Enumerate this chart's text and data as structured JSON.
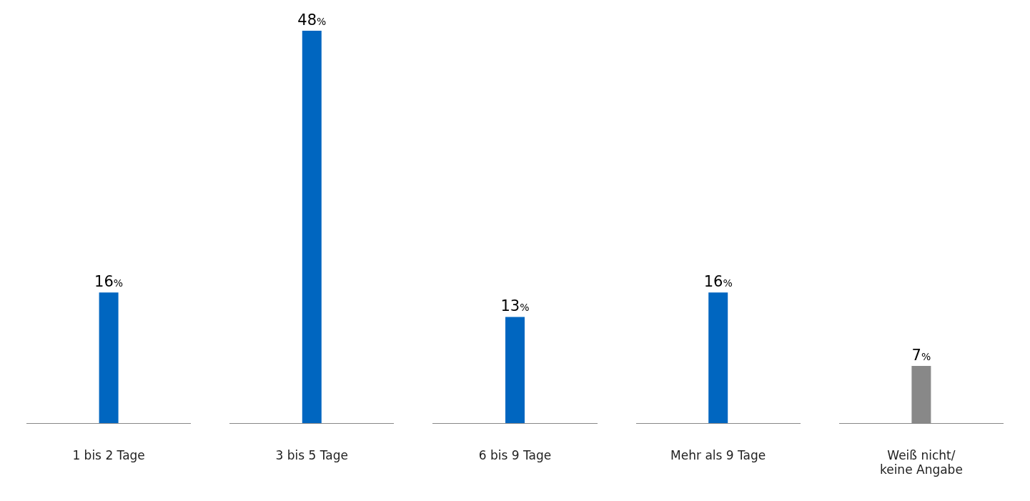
{
  "chart_data": {
    "type": "bar",
    "categories": [
      "1 bis 2 Tage",
      "3 bis 5 Tage",
      "6 bis 9 Tage",
      "Mehr als 9 Tage",
      "Weiß nicht/\nkeine Angabe"
    ],
    "values": [
      16,
      48,
      13,
      16,
      7
    ],
    "colors": [
      "#0066c0",
      "#0066c0",
      "#0066c0",
      "#0066c0",
      "#888888"
    ],
    "value_labels": [
      "16%",
      "48%",
      "13%",
      "16%",
      "7%"
    ],
    "legend": false
  }
}
